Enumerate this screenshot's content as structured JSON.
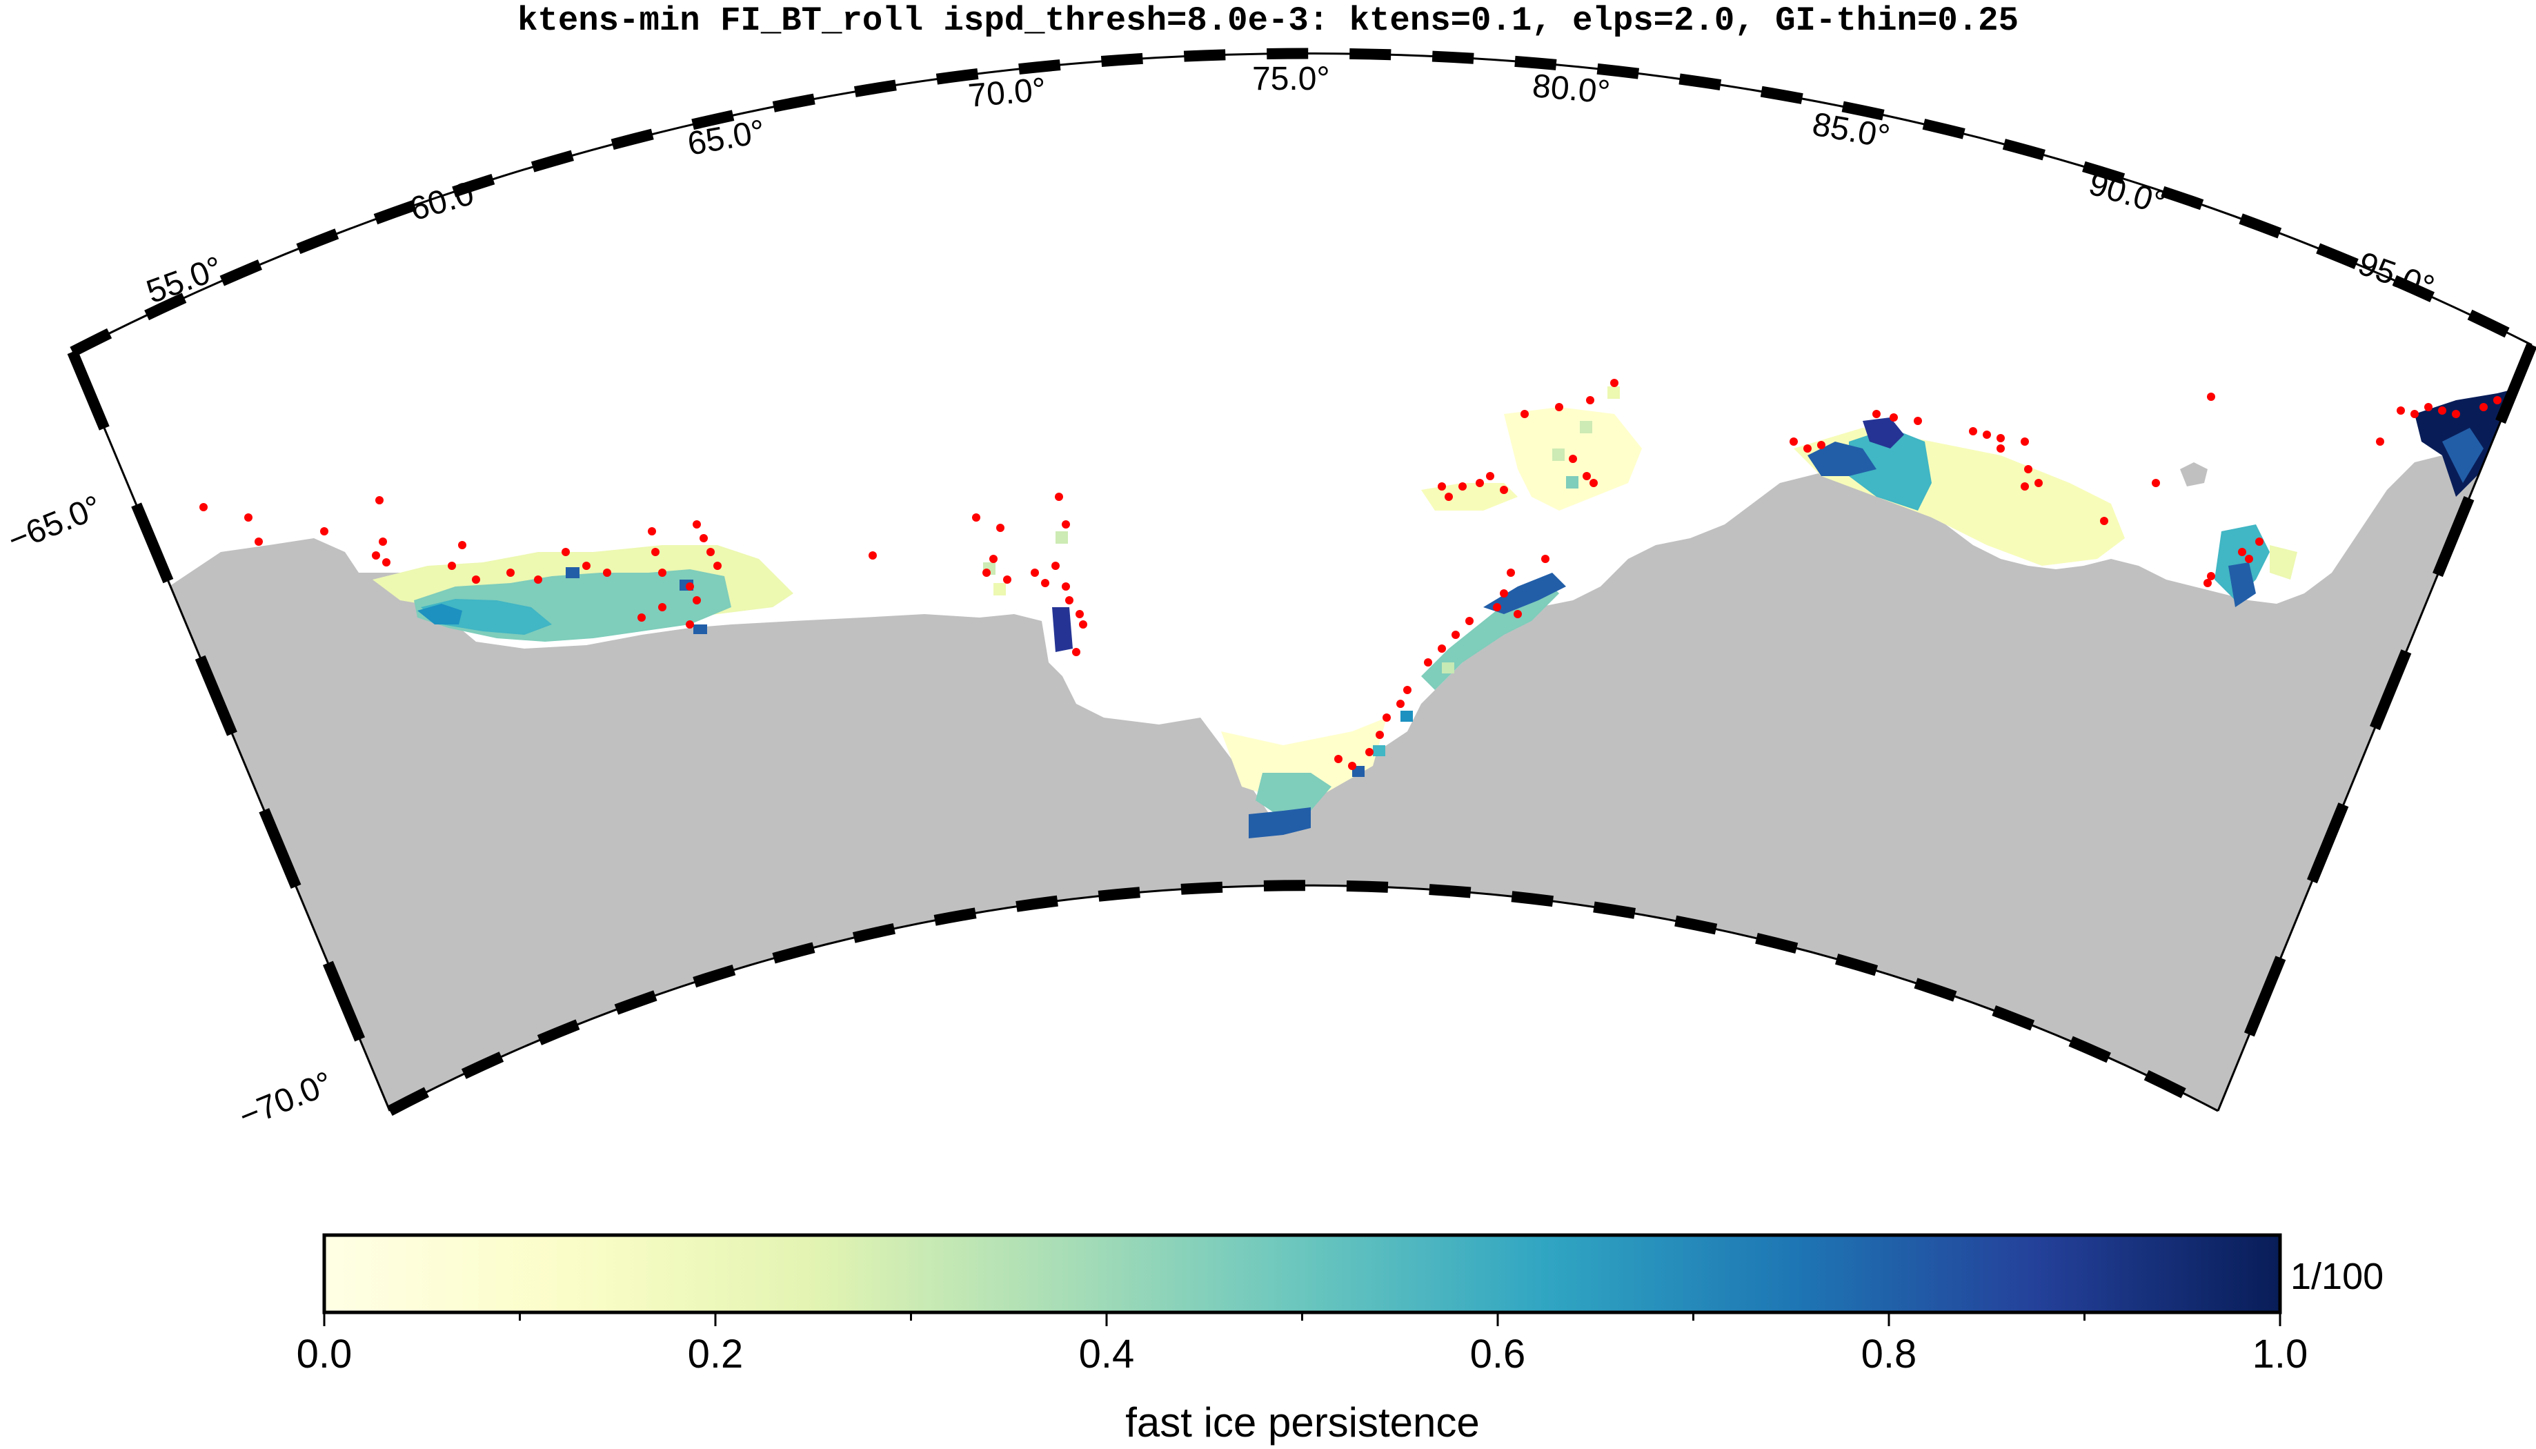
{
  "title": "ktens-min FI_BT_roll ispd_thresh=8.0e-3: ktens=0.1, elps=2.0, GI-thin=0.25",
  "longitude_labels": [
    "55.0°",
    "60.0°",
    "65.0°",
    "70.0°",
    "75.0°",
    "80.0°",
    "85.0°",
    "90.0°",
    "95.0°"
  ],
  "latitude_labels": [
    "−65.0°",
    "−70.0°"
  ],
  "colorbar": {
    "label": "fast ice persistence",
    "scale_note": "1/100",
    "ticks": [
      "0.0",
      "0.2",
      "0.4",
      "0.6",
      "0.8",
      "1.0"
    ],
    "range": [
      0.0,
      1.0
    ],
    "colormap": [
      "#ffffe5",
      "#f0f9b5",
      "#cdebb4",
      "#7fcdbb",
      "#41b6c4",
      "#1d91c0",
      "#225ea8",
      "#253494",
      "#081d58"
    ]
  },
  "colors": {
    "land": "#c0c0c0",
    "grounded_iceberg_points": "#ff0000",
    "frame_dark": "#000000",
    "frame_light": "#ffffff"
  }
}
